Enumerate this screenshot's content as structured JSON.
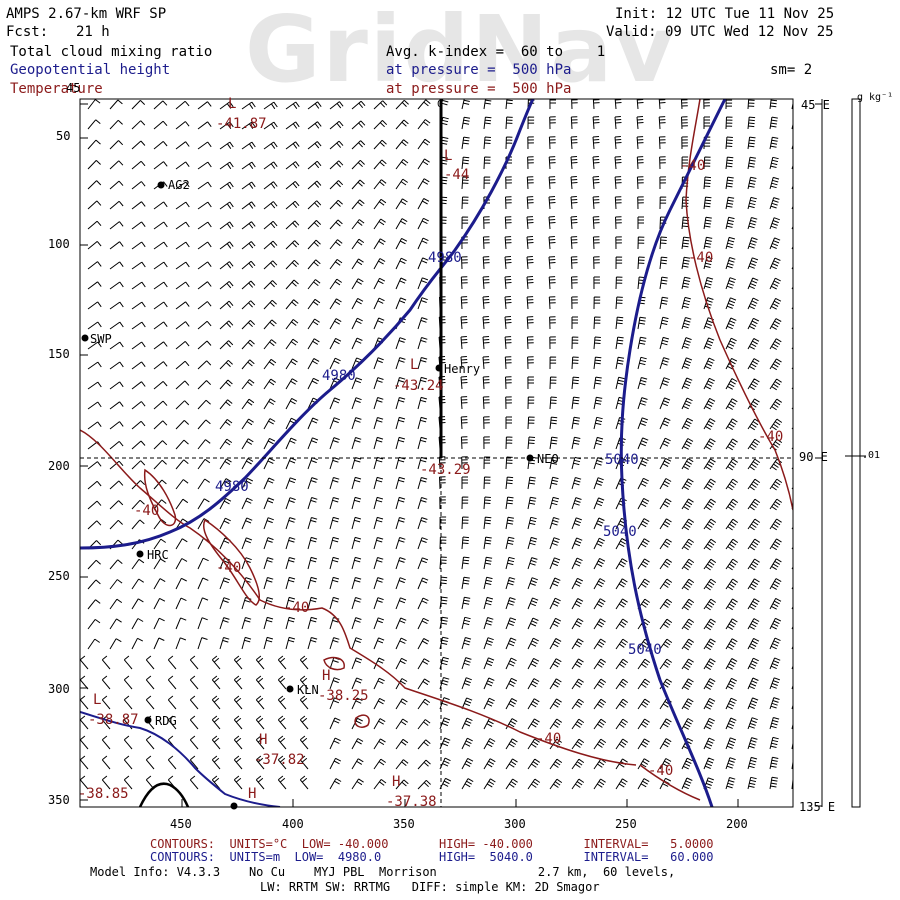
{
  "watermark": "GridNav",
  "header": {
    "model": "AMPS 2.67-km WRF SP",
    "fcst_label": "Fcst:",
    "fcst_value": "21 h",
    "init": "Init: 12 UTC Tue 11 Nov 25",
    "valid": "Valid: 09 UTC Wed 12 Nov 25",
    "field1": "Total cloud mixing ratio",
    "field2": "Geopotential height",
    "field3": "Temperature",
    "avg": "Avg. k-index =  60 to    1",
    "pressure1": "at pressure =  500 hPa",
    "pressure2": "at pressure =  500 hPa",
    "sm": "sm= 2"
  },
  "colors": {
    "blue": "#1c1c8c",
    "red": "#8b1a1a",
    "black": "#000000",
    "watermark": "#e6e6e6"
  },
  "axes": {
    "y_ticks": [
      "45",
      "50",
      "100",
      "150",
      "200",
      "250",
      "300",
      "350"
    ],
    "x_ticks": [
      "450",
      "400",
      "350",
      "300",
      "250",
      "200"
    ],
    "right_ticks": [
      "45 E",
      "90 E",
      "135 E"
    ],
    "colorbar_unit": "g kg⁻¹",
    "colorbar_value": ".01",
    "top_marker": "0"
  },
  "stations": [
    {
      "id": "AGO2",
      "label": "AG2"
    },
    {
      "id": "SWP",
      "label": "SWP"
    },
    {
      "id": "Henry",
      "label": "Henry"
    },
    {
      "id": "NEO",
      "label": "NEO"
    },
    {
      "id": "HRC",
      "label": "HRC"
    },
    {
      "id": "KLN",
      "label": "KLN"
    },
    {
      "id": "RDG",
      "label": "RDG"
    }
  ],
  "height_labels": [
    "4980",
    "4980",
    "4980",
    "5040",
    "5040",
    "5040"
  ],
  "temp_labels": [
    "-40",
    "-40",
    "-40",
    "-40",
    "-40",
    "-40",
    "-40",
    "-40"
  ],
  "extrema": [
    {
      "type": "L",
      "value": "-41.87"
    },
    {
      "type": "L",
      "value": "-44"
    },
    {
      "type": "L",
      "value": "-43.24"
    },
    {
      "type": "",
      "value": "-43.29"
    },
    {
      "type": "L",
      "value": "-38.87"
    },
    {
      "type": "H",
      "value": "-38.25"
    },
    {
      "type": "H",
      "value": "-37.82"
    },
    {
      "type": "H",
      "value": "-37.38"
    },
    {
      "type": "H",
      "value": "-38.85"
    },
    {
      "type": "H",
      "value": ""
    }
  ],
  "footer": {
    "red_contours": "CONTOURS:  UNITS=°C  LOW= -40.000       HIGH= -40.000       INTERVAL=   5.0000",
    "blue_contours": "CONTOURS:  UNITS=m  LOW=  4980.0        HIGH=  5040.0       INTERVAL=   60.000",
    "model_info": "Model Info: V4.3.3    No Cu    MYJ PBL  Morrison              2.7 km,  60 levels,",
    "physics": "LW: RRTM SW: RRTMG   DIFF: simple KM: 2D Smagor"
  }
}
